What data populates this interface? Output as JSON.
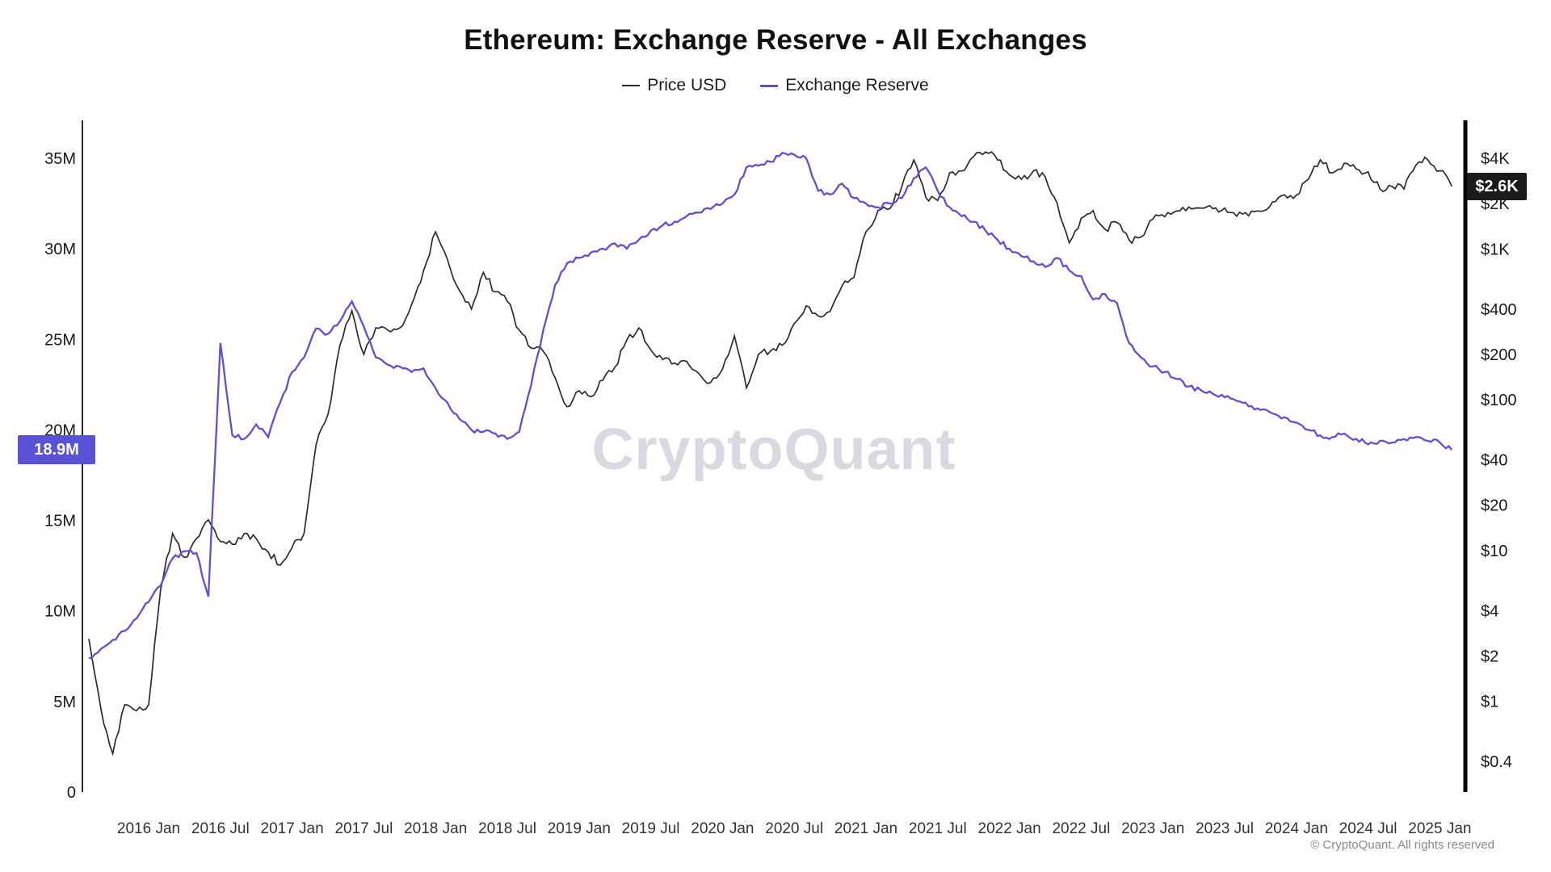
{
  "title": "Ethereum: Exchange Reserve - All Exchanges",
  "watermark": "CryptoQuant",
  "footer": "© CryptoQuant. All rights reserved",
  "legend": {
    "items": [
      {
        "label": "Price USD",
        "color": "#2b2b2b"
      },
      {
        "label": "Exchange Reserve",
        "color": "#5a52d6"
      }
    ]
  },
  "badges": {
    "left": {
      "text": "18.9M",
      "value": 18.9,
      "color": "#5a52d6"
    },
    "right": {
      "text": "$2.6K",
      "value": 2600,
      "color": "#1a1a1a"
    }
  },
  "chart_data": {
    "type": "line",
    "title": "Ethereum: Exchange Reserve - All Exchanges",
    "x_start_year": 2015.5833,
    "x_step_years": 0.0833333,
    "x_axis": {
      "ticks": [
        {
          "v": 2016.0,
          "label": "2016 Jan"
        },
        {
          "v": 2016.5,
          "label": "2016 Jul"
        },
        {
          "v": 2017.0,
          "label": "2017 Jan"
        },
        {
          "v": 2017.5,
          "label": "2017 Jul"
        },
        {
          "v": 2018.0,
          "label": "2018 Jan"
        },
        {
          "v": 2018.5,
          "label": "2018 Jul"
        },
        {
          "v": 2019.0,
          "label": "2019 Jan"
        },
        {
          "v": 2019.5,
          "label": "2019 Jul"
        },
        {
          "v": 2020.0,
          "label": "2020 Jan"
        },
        {
          "v": 2020.5,
          "label": "2020 Jul"
        },
        {
          "v": 2021.0,
          "label": "2021 Jan"
        },
        {
          "v": 2021.5,
          "label": "2021 Jul"
        },
        {
          "v": 2022.0,
          "label": "2022 Jan"
        },
        {
          "v": 2022.5,
          "label": "2022 Jul"
        },
        {
          "v": 2023.0,
          "label": "2023 Jan"
        },
        {
          "v": 2023.5,
          "label": "2023 Jul"
        },
        {
          "v": 2024.0,
          "label": "2024 Jan"
        },
        {
          "v": 2024.5,
          "label": "2024 Jul"
        },
        {
          "v": 2025.0,
          "label": "2025 Jan"
        }
      ]
    },
    "left_axis": {
      "scale": "linear",
      "unit": "ETH",
      "range": [
        0,
        37
      ],
      "ticks": [
        {
          "v": 35,
          "label": "35M"
        },
        {
          "v": 30,
          "label": "30M"
        },
        {
          "v": 25,
          "label": "25M"
        },
        {
          "v": 20,
          "label": "20M"
        },
        {
          "v": 15,
          "label": "15M"
        },
        {
          "v": 10,
          "label": "10M"
        },
        {
          "v": 5,
          "label": "5M"
        },
        {
          "v": 0,
          "label": "0"
        }
      ]
    },
    "right_axis": {
      "scale": "log",
      "unit": "USD",
      "range": [
        0.25,
        7000
      ],
      "ticks": [
        {
          "v": 4000,
          "label": "$4K"
        },
        {
          "v": 2000,
          "label": "$2K"
        },
        {
          "v": 1000,
          "label": "$1K"
        },
        {
          "v": 400,
          "label": "$400"
        },
        {
          "v": 200,
          "label": "$200"
        },
        {
          "v": 100,
          "label": "$100"
        },
        {
          "v": 40,
          "label": "$40"
        },
        {
          "v": 20,
          "label": "$20"
        },
        {
          "v": 10,
          "label": "$10"
        },
        {
          "v": 4,
          "label": "$4"
        },
        {
          "v": 2,
          "label": "$2"
        },
        {
          "v": 1,
          "label": "$1"
        },
        {
          "v": 0.4,
          "label": "$0.4"
        }
      ]
    },
    "series": [
      {
        "name": "Price USD",
        "axis": "right",
        "color": "#2b2b2b",
        "values": [
          2.6,
          0.9,
          0.45,
          0.95,
          0.87,
          0.95,
          5.5,
          13,
          9,
          12,
          16,
          11.5,
          11,
          13,
          12,
          9.8,
          8,
          10.5,
          13,
          50,
          80,
          230,
          390,
          200,
          300,
          290,
          300,
          430,
          720,
          1300,
          850,
          530,
          400,
          700,
          520,
          450,
          290,
          220,
          210,
          140,
          90,
          115,
          105,
          135,
          165,
          250,
          300,
          215,
          185,
          175,
          180,
          150,
          130,
          160,
          265,
          120,
          200,
          210,
          230,
          320,
          420,
          360,
          385,
          570,
          650,
          1300,
          1800,
          1850,
          2600,
          3900,
          2200,
          2100,
          3200,
          3300,
          4100,
          4400,
          3900,
          3100,
          2900,
          3300,
          3000,
          2000,
          1100,
          1600,
          1800,
          1350,
          1500,
          1150,
          1200,
          1580,
          1640,
          1790,
          1900,
          1870,
          1850,
          1870,
          1650,
          1660,
          1780,
          2050,
          2290,
          2280,
          2900,
          3900,
          3200,
          3700,
          3400,
          3250,
          2500,
          2600,
          2500,
          3600,
          3900,
          3300,
          2600
        ]
      },
      {
        "name": "Exchange Reserve",
        "axis": "left",
        "color": "#5a52d6",
        "values": [
          7.4,
          7.9,
          8.4,
          8.9,
          9.6,
          10.5,
          11.4,
          12.9,
          13.3,
          13.2,
          10.8,
          24.8,
          19.7,
          19.5,
          20.3,
          19.6,
          21.5,
          23.2,
          24.0,
          25.6,
          25.3,
          26.0,
          27.1,
          25.7,
          24.0,
          23.6,
          23.5,
          23.2,
          23.4,
          22.3,
          21.5,
          20.6,
          20.0,
          19.9,
          19.8,
          19.5,
          19.9,
          22.5,
          25.5,
          28.0,
          29.2,
          29.5,
          29.8,
          30.0,
          30.3,
          30.0,
          30.5,
          31.0,
          31.3,
          31.5,
          31.8,
          32.0,
          32.2,
          32.5,
          33.0,
          34.5,
          34.6,
          34.8,
          35.3,
          35.2,
          35.0,
          33.2,
          33.0,
          33.6,
          32.8,
          32.5,
          32.3,
          32.5,
          32.8,
          33.9,
          34.5,
          33.2,
          32.3,
          31.8,
          31.5,
          31.0,
          30.5,
          30.0,
          29.6,
          29.3,
          29.0,
          29.5,
          28.8,
          28.5,
          27.2,
          27.5,
          27.0,
          24.8,
          24.0,
          23.5,
          23.2,
          22.8,
          22.4,
          22.2,
          22.0,
          21.8,
          21.6,
          21.3,
          21.1,
          20.9,
          20.7,
          20.4,
          20.0,
          19.7,
          19.6,
          19.8,
          19.5,
          19.2,
          19.4,
          19.3,
          19.5,
          19.6,
          19.4,
          19.3,
          18.9
        ]
      }
    ],
    "annotations": {
      "last_reserve_label": "18.9M",
      "last_price_label": "$2.6K"
    },
    "legend_position": "top",
    "grid": false
  }
}
